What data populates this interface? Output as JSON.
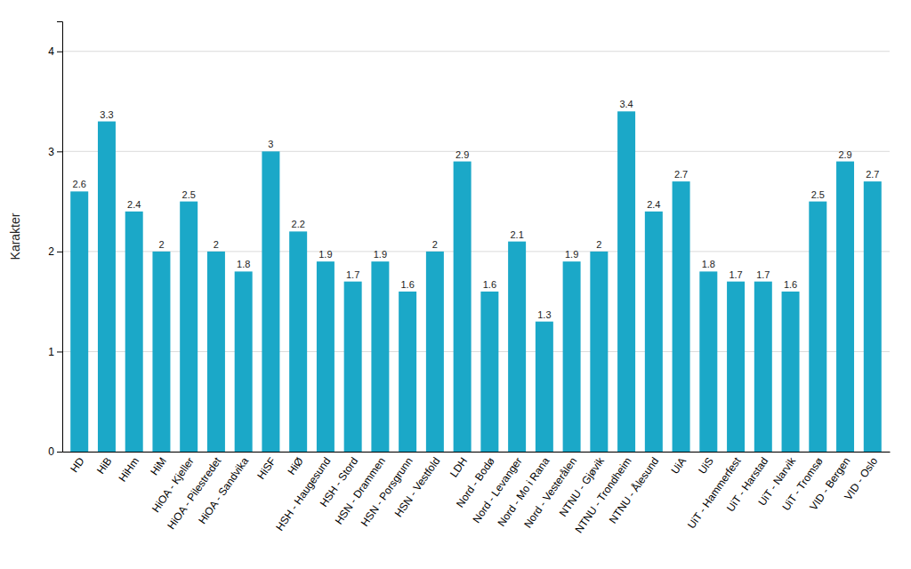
{
  "chart_data": {
    "type": "bar",
    "categories": [
      "HD",
      "HiB",
      "HiHm",
      "HiM",
      "HiOA - Kjeller",
      "HiOA - Pilestredet",
      "HiOA - Sandvika",
      "HiSF",
      "HiØ",
      "HSH - Haugesund",
      "HSH - Stord",
      "HSN - Drammen",
      "HSN - Porsgrunn",
      "HSN - Vestfold",
      "LDH",
      "Nord - Bodø",
      "Nord - Levanger",
      "Nord - Mo i Rana",
      "Nord - Vesterålen",
      "NTNU - Gjøvik",
      "NTNU - Trondheim",
      "NTNU - Ålesund",
      "UiA",
      "UiS",
      "UiT - Hammerfest",
      "UiT - Harstad",
      "UiT - Narvik",
      "UiT - Tromsø",
      "VID - Bergen",
      "VID - Oslo"
    ],
    "values": [
      2.6,
      3.3,
      2.4,
      2.0,
      2.5,
      2.0,
      1.8,
      3.0,
      2.2,
      1.9,
      1.7,
      1.9,
      1.6,
      2.0,
      2.9,
      1.6,
      2.1,
      1.3,
      1.9,
      2.0,
      3.4,
      2.4,
      2.7,
      1.8,
      1.7,
      1.7,
      1.6,
      2.5,
      2.9,
      2.7
    ],
    "color": "#1ba8c8",
    "ylabel": "Karakter",
    "ylim": [
      0,
      4.3
    ],
    "yticks": [
      0,
      1,
      2,
      3,
      4
    ],
    "grid": true,
    "data_labels": true
  }
}
